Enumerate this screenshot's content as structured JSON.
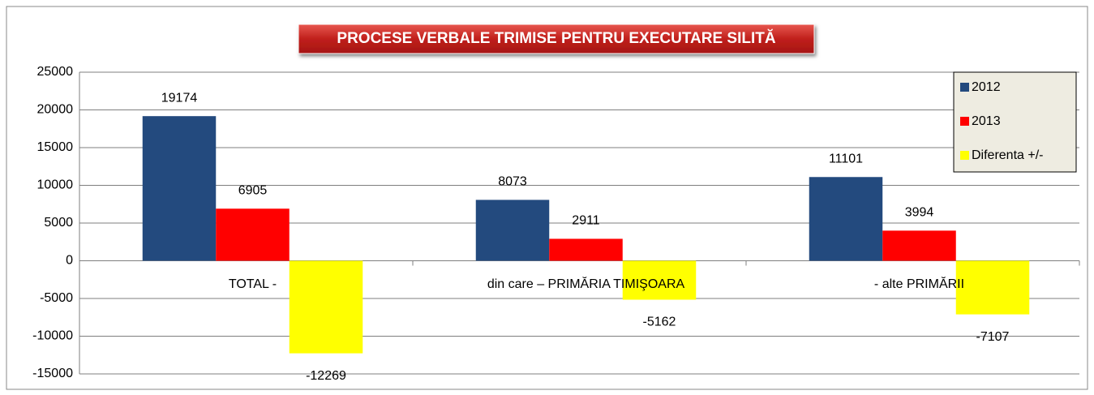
{
  "chart_data": {
    "type": "bar",
    "title": "PROCESE VERBALE TRIMISE PENTRU EXECUTARE SILITĂ",
    "categories": [
      "TOTAL -",
      "din care – PRIMĂRIA TIMIŞOARA",
      "- alte PRIMĂRII"
    ],
    "series": [
      {
        "name": "2012",
        "color": "#234a7e",
        "values": [
          19174,
          8073,
          11101
        ]
      },
      {
        "name": "2013",
        "color": "#ff0000",
        "values": [
          6905,
          2911,
          3994
        ]
      },
      {
        "name": "Diferenta +/-",
        "color": "#ffff00",
        "values": [
          -12269,
          -5162,
          -7107
        ]
      }
    ],
    "ylim": [
      -15000,
      25000
    ],
    "yticks": [
      -15000,
      -10000,
      -5000,
      0,
      5000,
      10000,
      15000,
      20000,
      25000
    ],
    "grid": true,
    "legend": "upper right"
  }
}
